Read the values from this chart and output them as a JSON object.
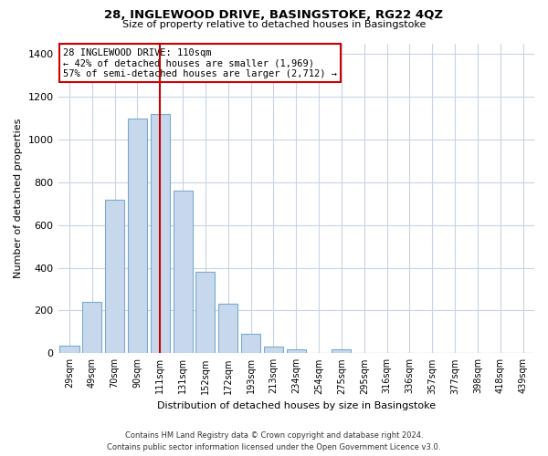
{
  "title": "28, INGLEWOOD DRIVE, BASINGSTOKE, RG22 4QZ",
  "subtitle": "Size of property relative to detached houses in Basingstoke",
  "xlabel": "Distribution of detached houses by size in Basingstoke",
  "ylabel": "Number of detached properties",
  "bar_labels": [
    "29sqm",
    "49sqm",
    "70sqm",
    "90sqm",
    "111sqm",
    "131sqm",
    "152sqm",
    "172sqm",
    "193sqm",
    "213sqm",
    "234sqm",
    "254sqm",
    "275sqm",
    "295sqm",
    "316sqm",
    "336sqm",
    "357sqm",
    "377sqm",
    "398sqm",
    "418sqm",
    "439sqm"
  ],
  "bar_values": [
    35,
    240,
    720,
    1100,
    1120,
    760,
    380,
    230,
    90,
    30,
    20,
    0,
    20,
    0,
    0,
    0,
    0,
    0,
    0,
    0,
    0
  ],
  "bar_fill_color": "#c8d8ec",
  "bar_edge_color": "#7aaace",
  "vline_x_index": 4,
  "vline_color": "#cc0000",
  "annotation_title": "28 INGLEWOOD DRIVE: 110sqm",
  "annotation_line1": "← 42% of detached houses are smaller (1,969)",
  "annotation_line2": "57% of semi-detached houses are larger (2,712) →",
  "ylim": [
    0,
    1450
  ],
  "yticks": [
    0,
    200,
    400,
    600,
    800,
    1000,
    1200,
    1400
  ],
  "footer_line1": "Contains HM Land Registry data © Crown copyright and database right 2024.",
  "footer_line2": "Contains public sector information licensed under the Open Government Licence v3.0.",
  "background_color": "#ffffff",
  "grid_color": "#c8d4e4"
}
